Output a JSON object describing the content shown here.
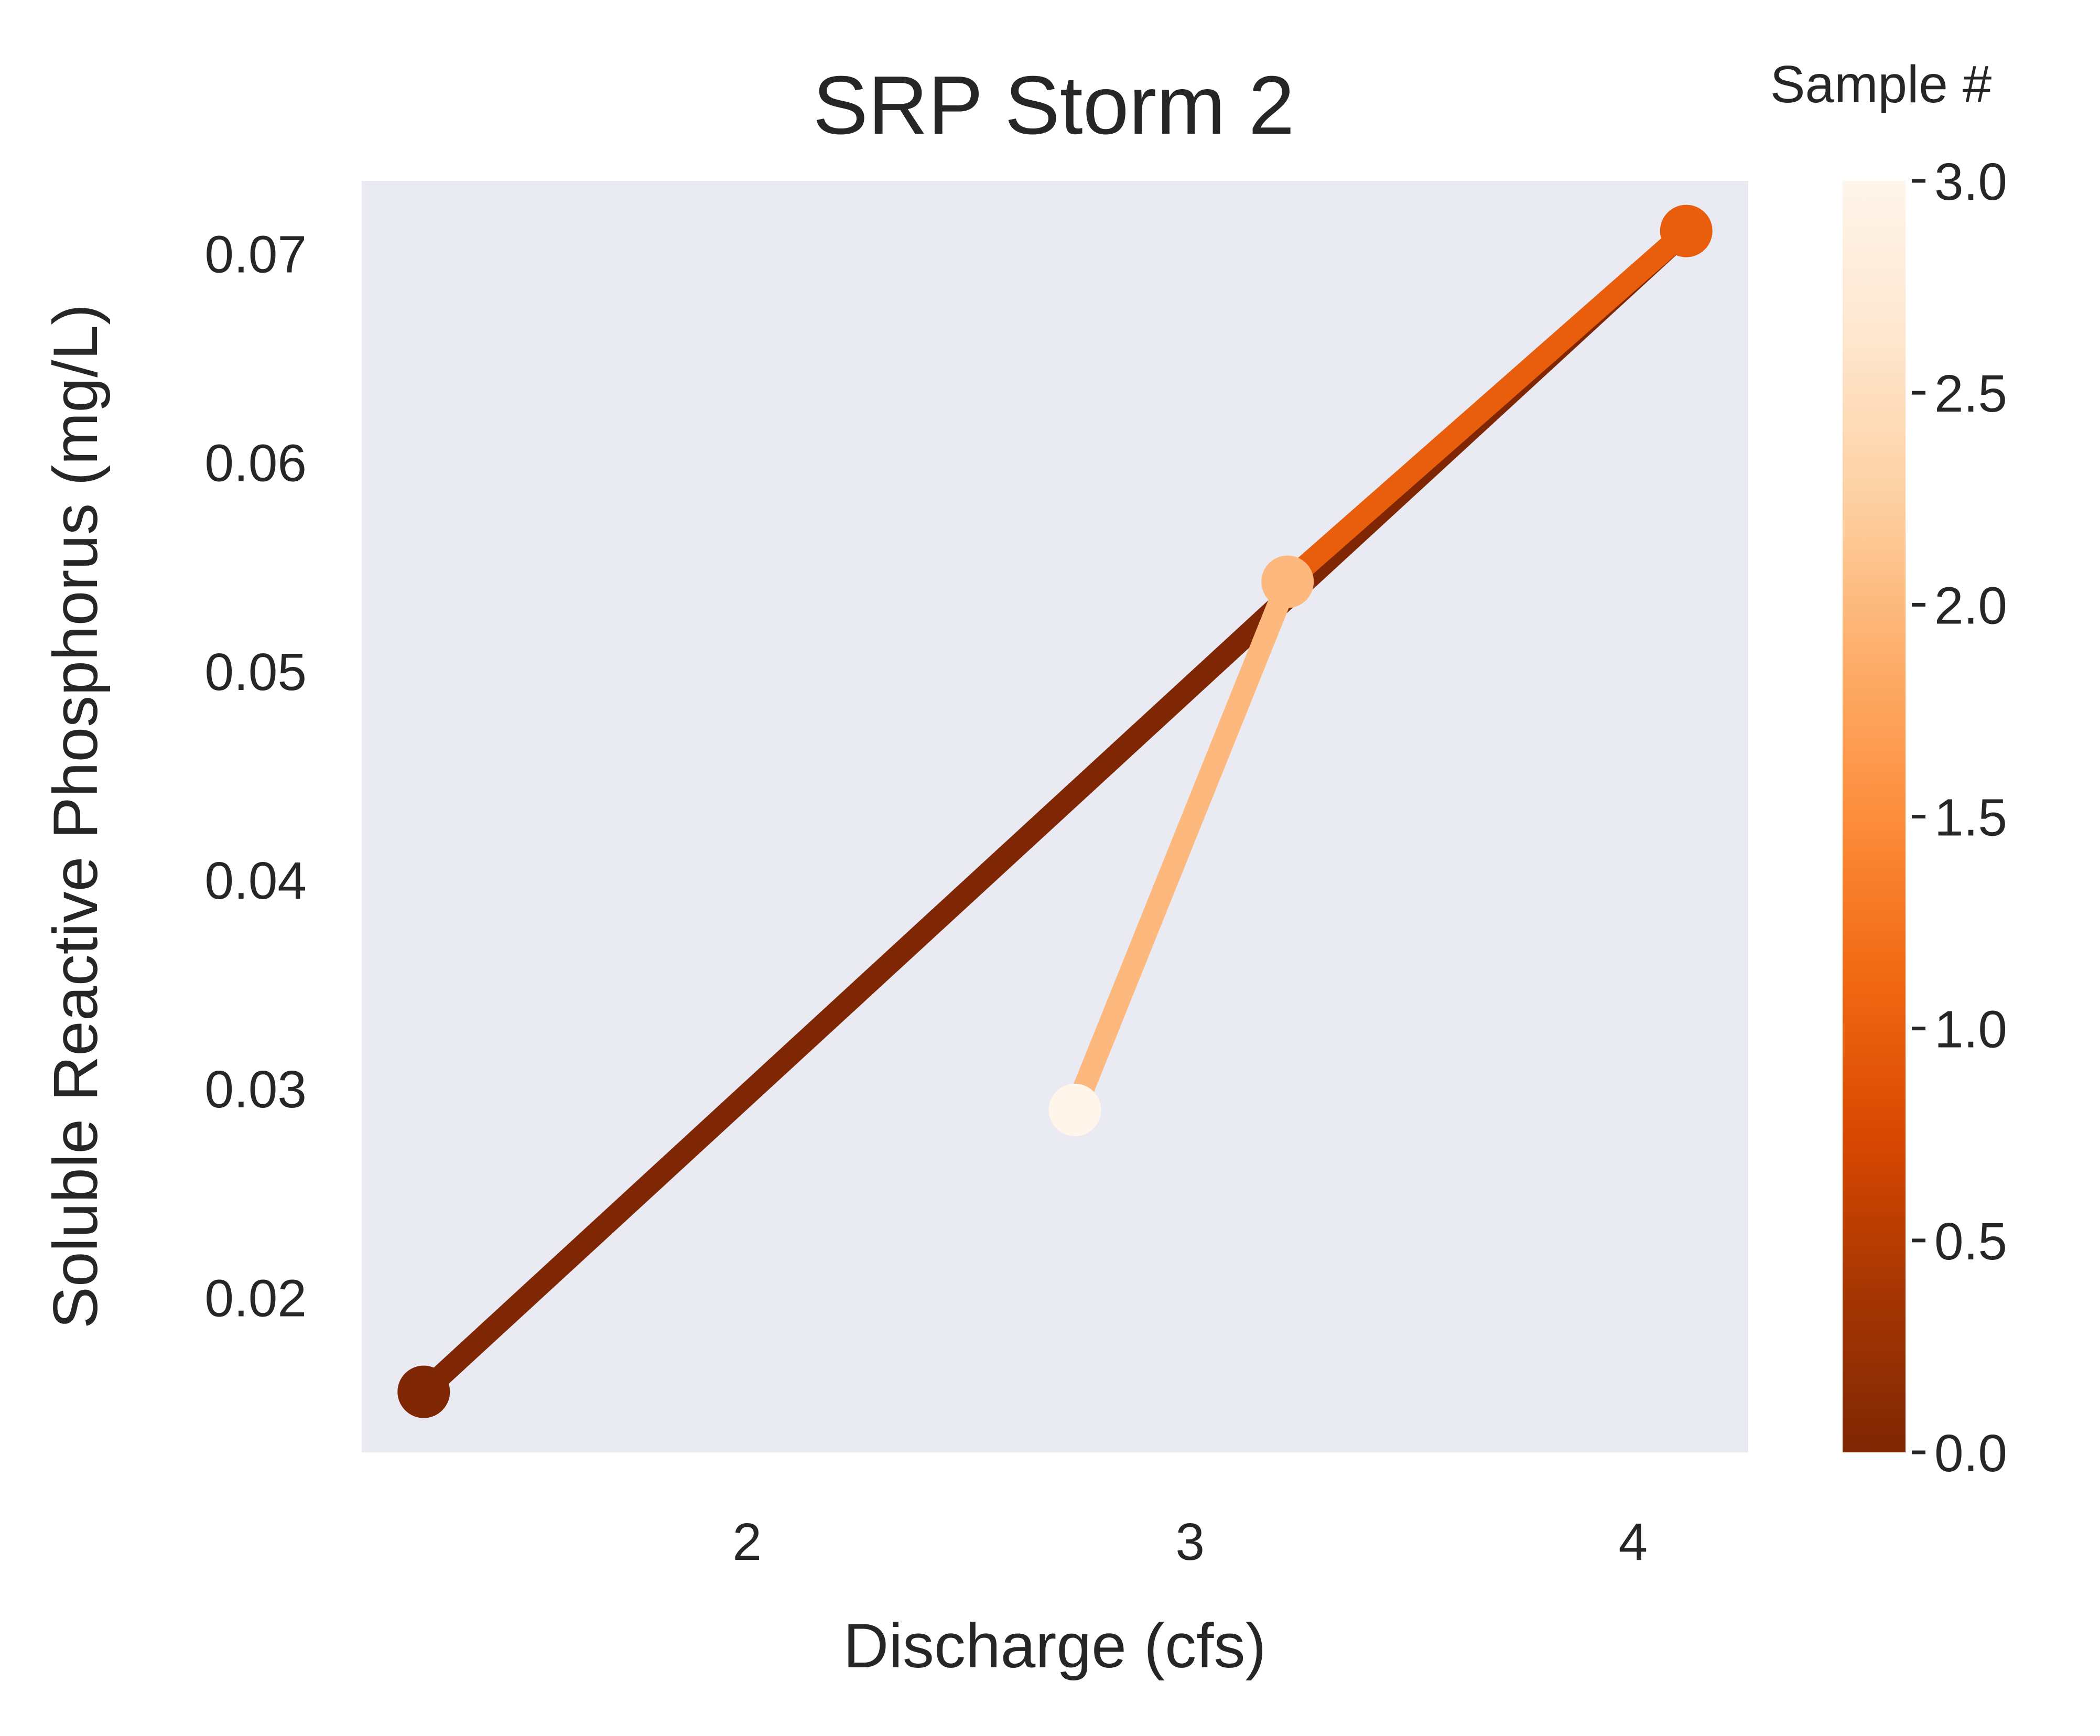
{
  "chart_data": {
    "type": "line",
    "title": "SRP Storm 2",
    "xlabel": "Discharge (cfs)",
    "ylabel": "Soluble Reactive Phosphorus (mg/L)",
    "xlim": [
      1.13,
      4.26
    ],
    "ylim": [
      0.0126,
      0.0735
    ],
    "x_ticks": [
      2,
      3,
      4
    ],
    "x_tick_labels": [
      "2",
      "3",
      "4"
    ],
    "y_ticks": [
      0.02,
      0.03,
      0.04,
      0.05,
      0.06,
      0.07
    ],
    "y_tick_labels": [
      "0.02",
      "0.03",
      "0.04",
      "0.05",
      "0.06",
      "0.07"
    ],
    "grid": false,
    "plot_background": "#eaeaf2",
    "points": [
      {
        "sample": 0,
        "x": 1.27,
        "y": 0.0155
      },
      {
        "sample": 1,
        "x": 4.12,
        "y": 0.0711
      },
      {
        "sample": 2,
        "x": 3.22,
        "y": 0.0543
      },
      {
        "sample": 3,
        "x": 2.74,
        "y": 0.029
      }
    ],
    "colorbar": {
      "title": "Sample #",
      "colormap": "Oranges_r",
      "range": [
        0.0,
        3.0
      ],
      "ticks": [
        0.0,
        0.5,
        1.0,
        1.5,
        2.0,
        2.5,
        3.0
      ],
      "tick_labels": [
        "0.0",
        "0.5",
        "1.0",
        "1.5",
        "2.0",
        "2.5",
        "3.0"
      ],
      "stops": [
        "#7f2704",
        "#a63603",
        "#d94801",
        "#f16913",
        "#fd8d3c",
        "#fdae6b",
        "#fdd0a2",
        "#fee6ce",
        "#fff5eb"
      ]
    }
  }
}
